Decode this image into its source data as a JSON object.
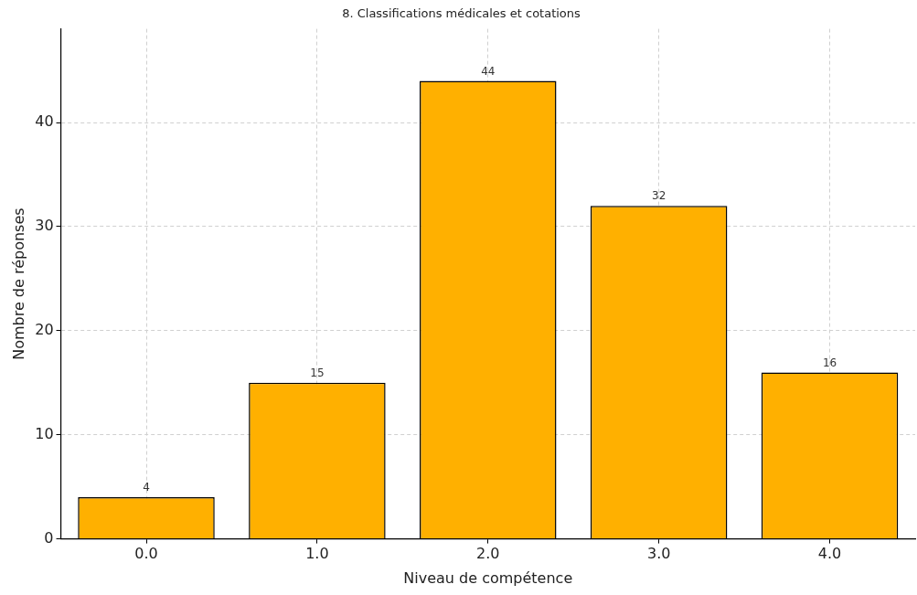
{
  "chart_data": {
    "type": "bar",
    "title": "8. Classifications médicales et cotations",
    "xlabel": "Niveau de compétence",
    "ylabel": "Nombre de réponses",
    "categories": [
      "0.0",
      "1.0",
      "2.0",
      "3.0",
      "4.0"
    ],
    "values": [
      4,
      15,
      44,
      32,
      16
    ],
    "color": "#ffb000",
    "ylim": [
      0,
      49
    ],
    "yticks": [
      0,
      10,
      20,
      30,
      40
    ],
    "grid": true,
    "data_labels": true
  }
}
